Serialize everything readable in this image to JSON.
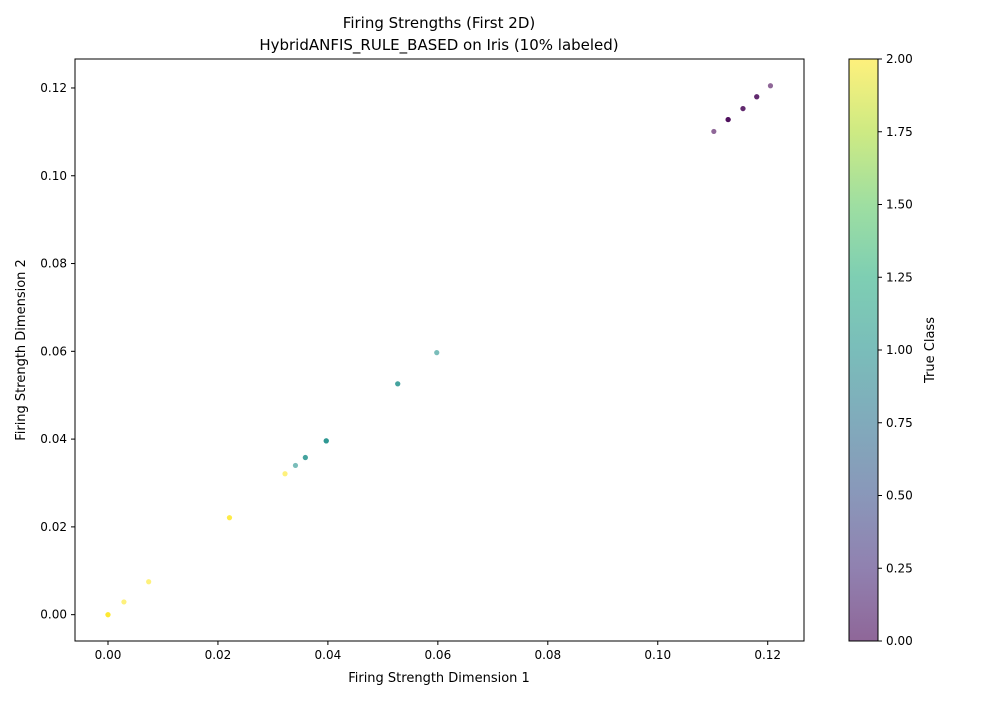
{
  "chart_data": {
    "type": "scatter",
    "title_line1": "Firing Strengths (First 2D)",
    "title_line2": "HybridANFIS_RULE_BASED on Iris (10% labeled)",
    "xlabel": "Firing Strength Dimension 1",
    "ylabel": "Firing Strength Dimension 2",
    "colorbar_label": "True Class",
    "xlim": [
      -0.006,
      0.1266
    ],
    "ylim": [
      -0.006,
      0.1266
    ],
    "x_ticks": [
      0.0,
      0.02,
      0.04,
      0.06,
      0.08,
      0.1,
      0.12
    ],
    "x_tick_labels": [
      "0.00",
      "0.02",
      "0.04",
      "0.06",
      "0.08",
      "0.10",
      "0.12"
    ],
    "y_ticks": [
      0.0,
      0.02,
      0.04,
      0.06,
      0.08,
      0.1,
      0.12
    ],
    "y_tick_labels": [
      "0.00",
      "0.02",
      "0.04",
      "0.06",
      "0.08",
      "0.10",
      "0.12"
    ],
    "colorbar_range": [
      0.0,
      2.0
    ],
    "colorbar_ticks": [
      0.0,
      0.25,
      0.5,
      0.75,
      1.0,
      1.25,
      1.5,
      1.75,
      2.0
    ],
    "colorbar_tick_labels": [
      "0.00",
      "0.25",
      "0.50",
      "0.75",
      "1.00",
      "1.25",
      "1.50",
      "1.75",
      "2.00"
    ],
    "colormap": "viridis",
    "marker_alpha": 0.6,
    "grid": false,
    "points": [
      {
        "x": 0.1205,
        "y": 0.1205,
        "class": 0
      },
      {
        "x": 0.118,
        "y": 0.118,
        "class": 0
      },
      {
        "x": 0.118,
        "y": 0.118,
        "class": 0
      },
      {
        "x": 0.1155,
        "y": 0.1153,
        "class": 0
      },
      {
        "x": 0.1155,
        "y": 0.1153,
        "class": 0
      },
      {
        "x": 0.1128,
        "y": 0.1128,
        "class": 0
      },
      {
        "x": 0.1128,
        "y": 0.1128,
        "class": 0
      },
      {
        "x": 0.1128,
        "y": 0.1128,
        "class": 0
      },
      {
        "x": 0.1102,
        "y": 0.1101,
        "class": 0
      },
      {
        "x": 0.0598,
        "y": 0.0597,
        "class": 1
      },
      {
        "x": 0.0527,
        "y": 0.0526,
        "class": 1
      },
      {
        "x": 0.0527,
        "y": 0.0526,
        "class": 1
      },
      {
        "x": 0.0397,
        "y": 0.0396,
        "class": 1
      },
      {
        "x": 0.0397,
        "y": 0.0396,
        "class": 1
      },
      {
        "x": 0.0397,
        "y": 0.0396,
        "class": 1
      },
      {
        "x": 0.0359,
        "y": 0.0358,
        "class": 1
      },
      {
        "x": 0.0359,
        "y": 0.0358,
        "class": 1
      },
      {
        "x": 0.0341,
        "y": 0.034,
        "class": 1
      },
      {
        "x": 0.0322,
        "y": 0.0321,
        "class": 2
      },
      {
        "x": 0.0221,
        "y": 0.0221,
        "class": 2
      },
      {
        "x": 0.0221,
        "y": 0.0221,
        "class": 2
      },
      {
        "x": 0.0074,
        "y": 0.0075,
        "class": 2
      },
      {
        "x": 0.0029,
        "y": 0.0029,
        "class": 2
      },
      {
        "x": 0.0,
        "y": 0.0,
        "class": 2
      },
      {
        "x": 0.0,
        "y": 0.0,
        "class": 2
      },
      {
        "x": 0.0,
        "y": 0.0,
        "class": 2
      }
    ]
  }
}
